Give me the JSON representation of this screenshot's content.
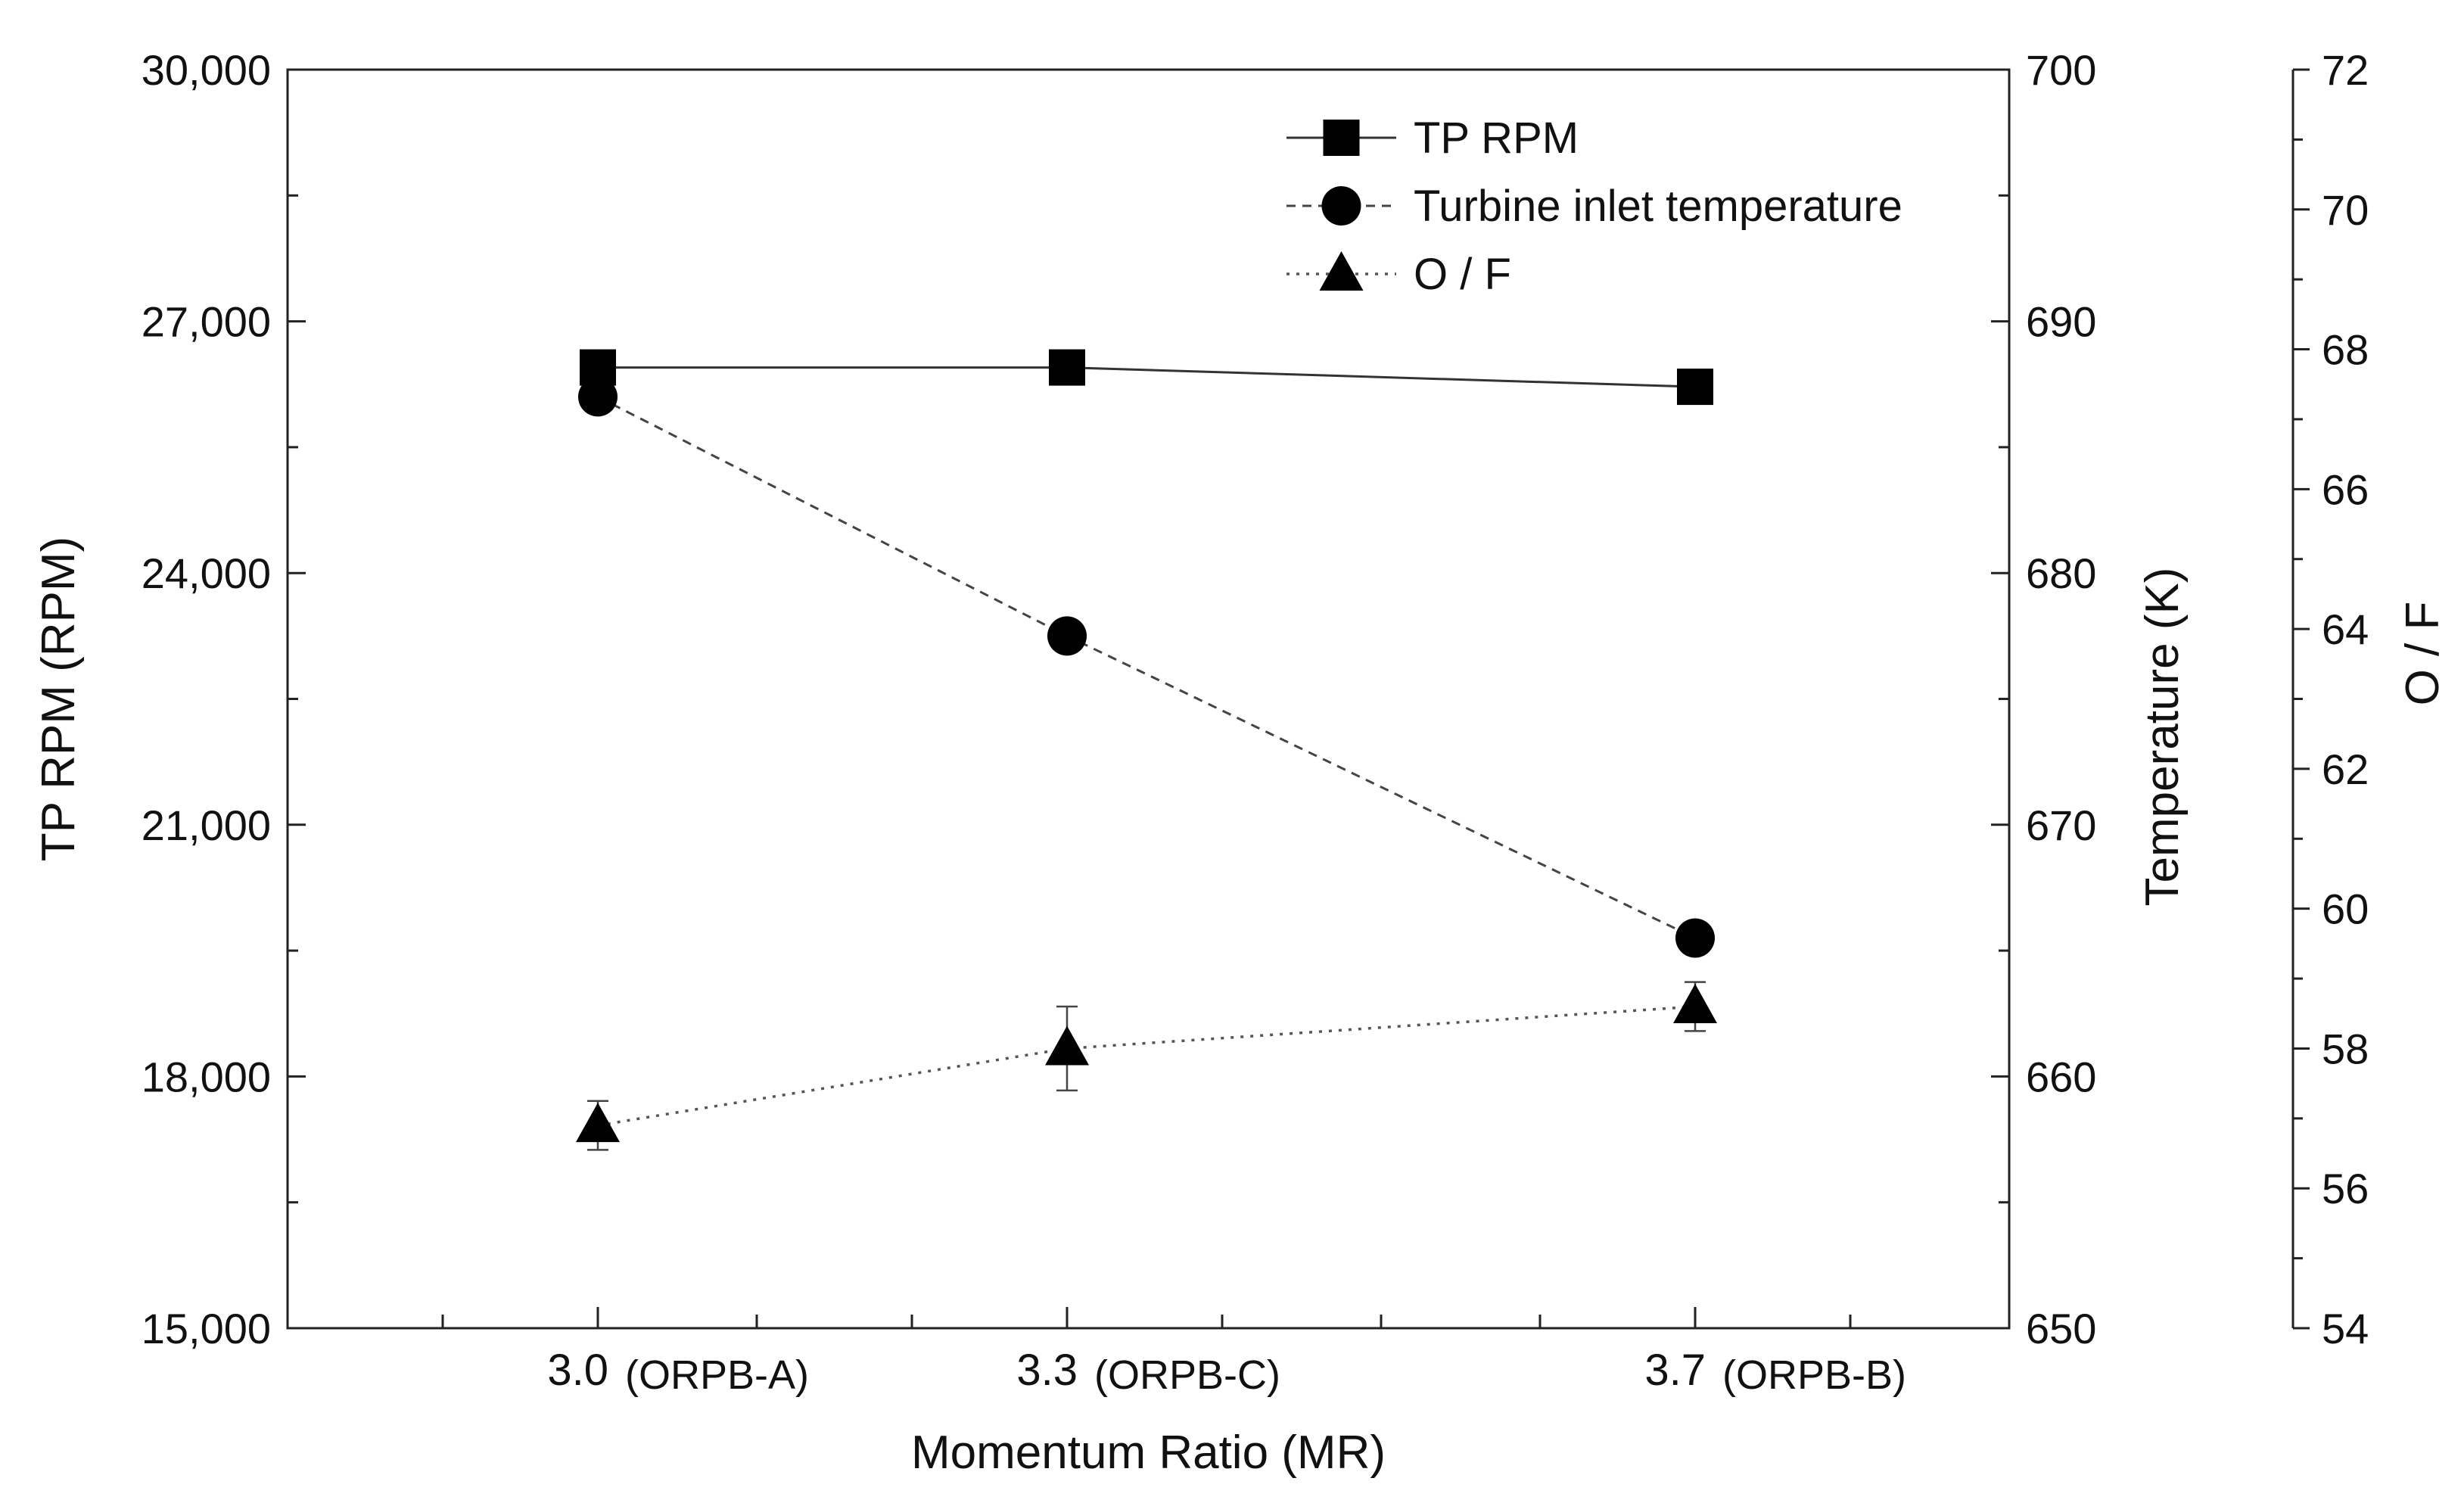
{
  "chart_data": {
    "type": "line",
    "title": "",
    "xlabel": "Momentum Ratio (MR)",
    "categories": [
      {
        "value": "3.0",
        "sub": "(ORPB-A)"
      },
      {
        "value": "3.3",
        "sub": "(ORPB-C)"
      },
      {
        "value": "3.7",
        "sub": "(ORPB-B)"
      }
    ],
    "axes": {
      "left": {
        "label": "TP RPM (RPM)",
        "range": [
          15000,
          30000
        ],
        "ticks": [
          "15,000",
          "18,000",
          "21,000",
          "24,000",
          "27,000",
          "30,000"
        ],
        "tick_values": [
          15000,
          18000,
          21000,
          24000,
          27000,
          30000
        ]
      },
      "right1": {
        "label": "Temperature (K)",
        "range": [
          650,
          700
        ],
        "ticks": [
          "650",
          "660",
          "670",
          "680",
          "690",
          "700"
        ],
        "tick_values": [
          650,
          660,
          670,
          680,
          690,
          700
        ]
      },
      "right2": {
        "label": "O / F",
        "range": [
          54,
          72
        ],
        "ticks": [
          "54",
          "56",
          "58",
          "60",
          "62",
          "64",
          "66",
          "68",
          "70",
          "72"
        ],
        "tick_values": [
          54,
          56,
          58,
          60,
          62,
          64,
          66,
          68,
          70,
          72
        ]
      }
    },
    "series": [
      {
        "name": "TP RPM",
        "axis": "left",
        "marker": "square",
        "line": "solid",
        "values": [
          26450,
          26450,
          26220
        ],
        "errors": [
          0,
          0,
          0
        ]
      },
      {
        "name": "Turbine inlet temperature",
        "axis": "right1",
        "marker": "circle",
        "line": "dashed",
        "values": [
          687.0,
          677.5,
          665.5
        ],
        "errors": [
          0,
          0,
          0
        ]
      },
      {
        "name": "O / F",
        "axis": "right2",
        "marker": "triangle",
        "line": "dotted",
        "values": [
          56.9,
          58.0,
          58.6
        ],
        "errors": [
          0.35,
          0.6,
          0.35
        ]
      }
    ],
    "legend_position": "top-right"
  }
}
